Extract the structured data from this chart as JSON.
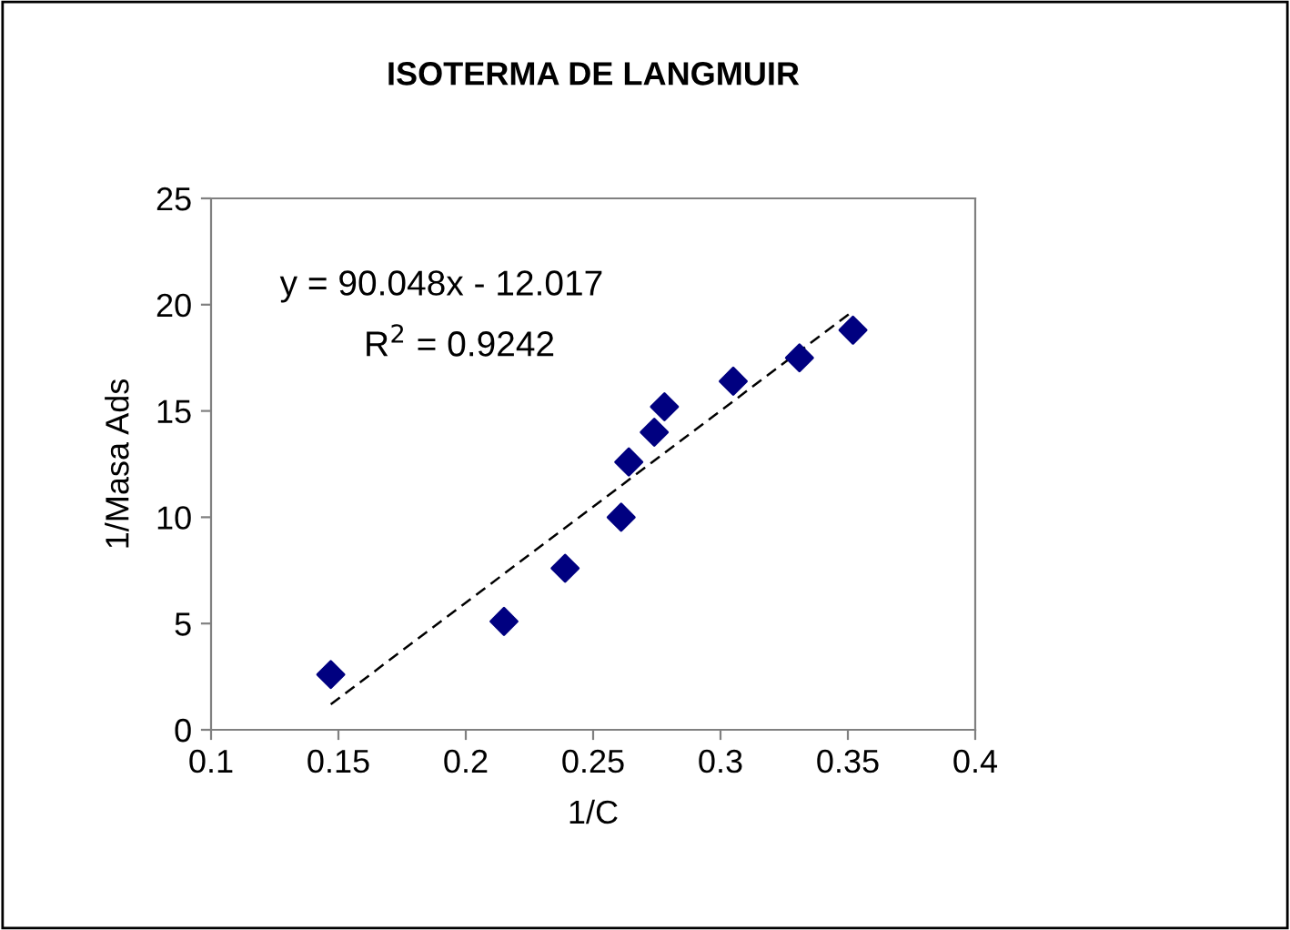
{
  "chart_data": {
    "type": "scatter",
    "title": "ISOTERMA DE LANGMUIR",
    "xlabel": "1/C",
    "ylabel": "1/Masa Ads",
    "series": [
      {
        "color": "#000080",
        "marker": "diamond",
        "x": [
          0.147,
          0.215,
          0.239,
          0.261,
          0.264,
          0.274,
          0.278,
          0.305,
          0.331,
          0.352
        ],
        "values": [
          2.6,
          5.1,
          7.6,
          10.0,
          12.6,
          14.0,
          15.2,
          16.4,
          17.5,
          18.8
        ]
      },
      {
        "type": "line",
        "color": "#000000",
        "line_style": "dashed",
        "marker": "none",
        "x": [
          0.147,
          0.352
        ],
        "values": [
          1.2,
          19.7
        ]
      }
    ],
    "annotations": [
      "y = 90.048x - 12.017",
      "R$^{2}$ = 0.9242"
    ],
    "xlim": [
      0.1,
      0.4
    ],
    "xticks": [
      0.1,
      0.15,
      0.2,
      0.25,
      0.3,
      0.35,
      0.4
    ],
    "ylim": [
      0,
      25
    ],
    "yticks": [
      0,
      5,
      10,
      15,
      20,
      25
    ],
    "grid": false,
    "legend": false
  }
}
